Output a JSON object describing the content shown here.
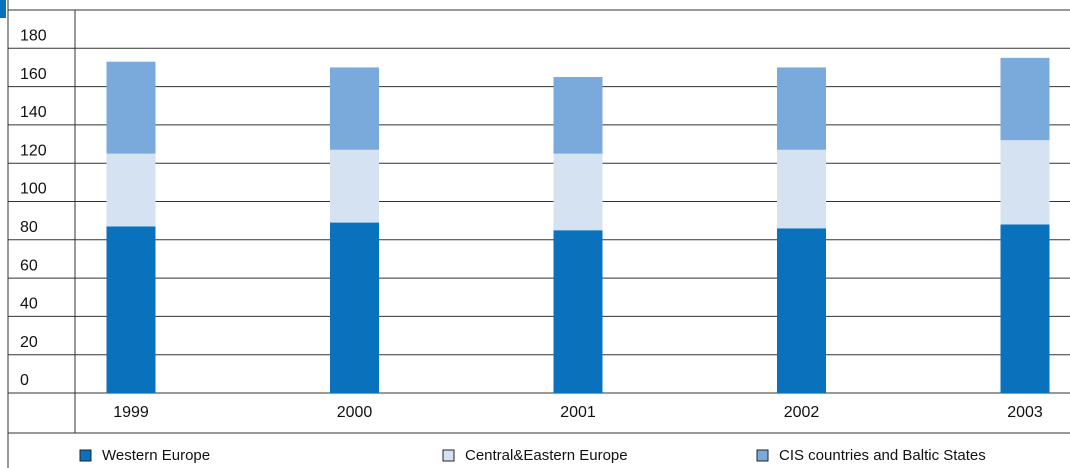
{
  "chart_data": {
    "type": "stacked_bar",
    "categories": [
      "1999",
      "2000",
      "2001",
      "2002",
      "2003"
    ],
    "series": [
      {
        "name": "Western Europe",
        "color": "#0a72bd",
        "values": [
          87,
          89,
          85,
          86,
          88
        ]
      },
      {
        "name": "Central&Eastern Europe",
        "color": "#d5e2f2",
        "values": [
          38,
          38,
          40,
          41,
          44
        ]
      },
      {
        "name": "CIS countries and Baltic States",
        "color": "#7aaadb",
        "values": [
          48,
          43,
          40,
          43,
          43
        ]
      }
    ],
    "ylim": [
      0,
      200
    ],
    "yticks": [
      0,
      20,
      40,
      60,
      80,
      100,
      120,
      140,
      160,
      180
    ],
    "grid": true
  }
}
